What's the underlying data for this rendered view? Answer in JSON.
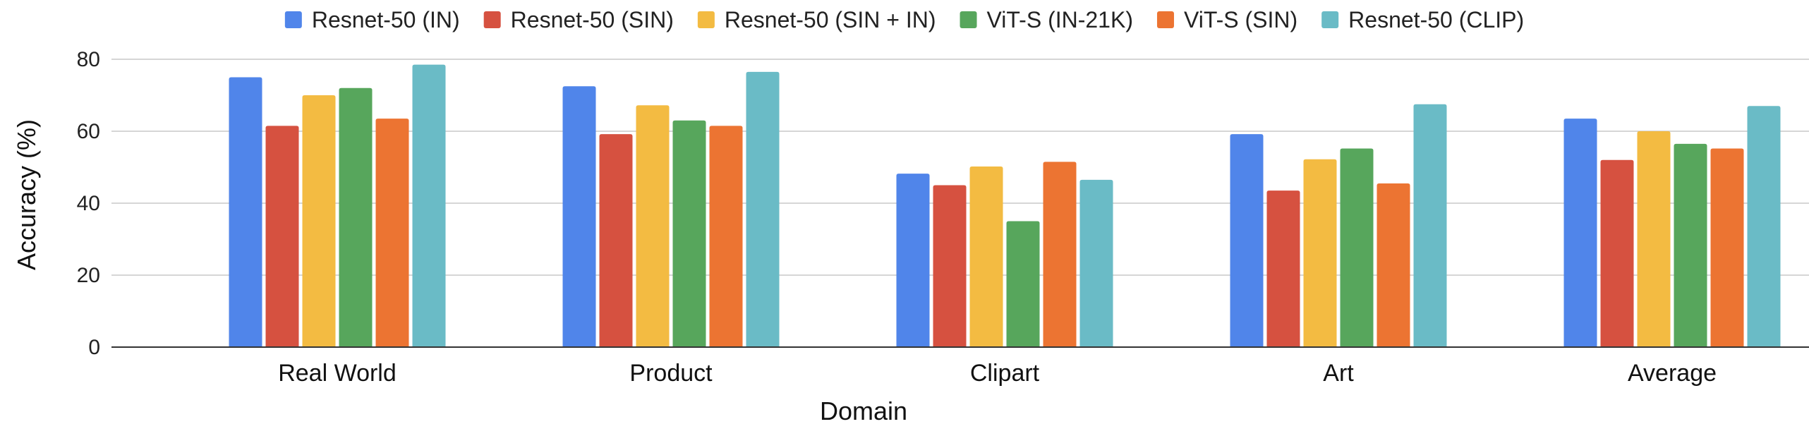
{
  "chart_data": {
    "type": "bar",
    "title": "",
    "xlabel": "Domain",
    "ylabel": "Accuracy (%)",
    "ylim": [
      0,
      80
    ],
    "yticks": [
      0,
      20,
      40,
      60,
      80
    ],
    "grid": true,
    "legend_position": "top",
    "categories": [
      "Real World",
      "Product",
      "Clipart",
      "Art",
      "Average"
    ],
    "series": [
      {
        "name": "Resnet-50 (IN)",
        "color": "#5085EA",
        "values": [
          75.0,
          72.5,
          48.2,
          59.2,
          63.5
        ]
      },
      {
        "name": "Resnet-50 (SIN)",
        "color": "#D65140",
        "values": [
          61.5,
          59.2,
          45.0,
          43.5,
          52.0
        ]
      },
      {
        "name": "Resnet-50 (SIN + IN)",
        "color": "#F3BB42",
        "values": [
          70.0,
          67.2,
          50.2,
          52.2,
          60.0
        ]
      },
      {
        "name": "ViT-S (IN-21K)",
        "color": "#57A65C",
        "values": [
          72.0,
          63.0,
          35.0,
          55.2,
          56.5
        ]
      },
      {
        "name": "ViT-S (SIN)",
        "color": "#EC7432",
        "values": [
          63.5,
          61.5,
          51.5,
          45.5,
          55.2
        ]
      },
      {
        "name": "Resnet-50 (CLIP)",
        "color": "#6ABBC6",
        "values": [
          78.5,
          76.5,
          46.5,
          67.5,
          67.0
        ]
      }
    ]
  }
}
